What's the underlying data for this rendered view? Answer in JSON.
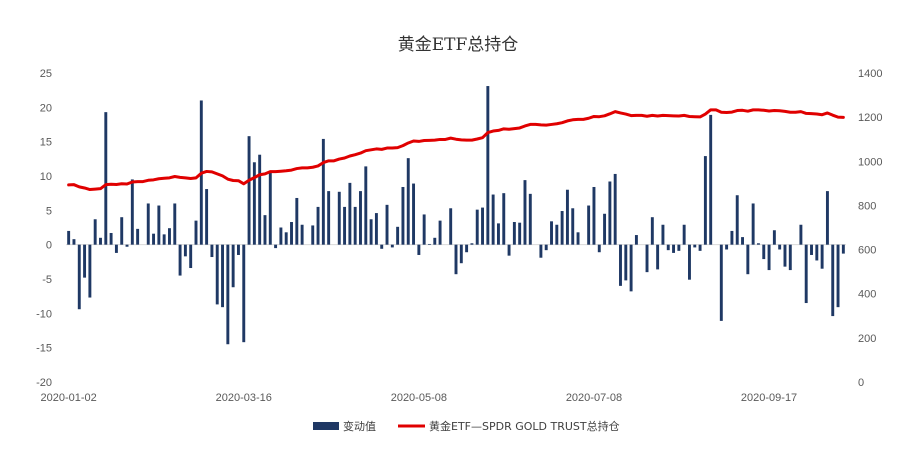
{
  "chart_data": {
    "type": "bar",
    "title": "黄金ETF总持仓",
    "legend_position": "bottom",
    "grid": false,
    "x_tick_labels": [
      "2020-01-02",
      "2020-03-16",
      "2020-05-08",
      "2020-07-08",
      "2020-09-17"
    ],
    "x_tick_indices": [
      0,
      33,
      66,
      99,
      132
    ],
    "y_left": {
      "min": -20,
      "max": 25,
      "step": 5
    },
    "y_right": {
      "min": 0,
      "max": 1400,
      "step": 200
    },
    "series": [
      {
        "name": "变动值",
        "type": "bar",
        "axis": "left",
        "color": "#1f3864",
        "values": [
          2.0,
          0.8,
          -9.4,
          -4.8,
          -7.7,
          3.7,
          1.0,
          19.3,
          1.7,
          -1.2,
          4.0,
          -0.3,
          9.5,
          2.3,
          0,
          6.0,
          1.6,
          5.7,
          1.5,
          2.4,
          6.0,
          -4.5,
          -1.7,
          -3.4,
          3.5,
          21.0,
          8.1,
          -1.8,
          -8.7,
          -9.1,
          -14.5,
          -6.2,
          -1.5,
          -14.2,
          15.8,
          12.0,
          13.1,
          4.3,
          10.5,
          -0.5,
          2.5,
          1.8,
          3.3,
          6.8,
          2.9,
          0,
          2.8,
          5.5,
          15.4,
          7.8,
          0,
          7.7,
          5.5,
          9.0,
          5.5,
          7.8,
          11.4,
          3.7,
          4.6,
          -0.6,
          5.8,
          -0.4,
          2.6,
          8.4,
          12.6,
          8.9,
          -1.5,
          4.4,
          0.1,
          1.0,
          3.5,
          0,
          5.3,
          -4.3,
          -2.7,
          -1.1,
          0.2,
          5.1,
          5.4,
          23.1,
          7.3,
          3.1,
          7.5,
          -1.6,
          3.3,
          3.2,
          9.4,
          7.4,
          0,
          -1.9,
          -0.8,
          3.4,
          2.9,
          4.9,
          8.0,
          5.3,
          1.8,
          0,
          5.7,
          8.4,
          -1.1,
          4.5,
          9.2,
          10.3,
          -6.0,
          -5.2,
          -6.8,
          1.4,
          0,
          -4.0,
          4.0,
          -3.6,
          2.9,
          -0.8,
          -1.2,
          -0.9,
          2.9,
          -5.1,
          -0.4,
          -0.9,
          12.9,
          18.9,
          0,
          -11.1,
          -0.7,
          2.0,
          7.2,
          1.1,
          -4.3,
          6.0,
          0.2,
          -2.1,
          -3.7,
          2.1,
          -0.7,
          -3.2,
          -3.7,
          0,
          2.9,
          -8.5,
          -1.5,
          -2.3,
          -3.5,
          7.8,
          -10.4,
          -9.1,
          -1.3
        ]
      },
      {
        "name": "黄金ETF—SPDR GOLD TRUST总持仓",
        "type": "line",
        "axis": "right",
        "color": "#e00000",
        "values": [
          893,
          894,
          884,
          879,
          872,
          874,
          876,
          894,
          896,
          895,
          898,
          897,
          906,
          908,
          908,
          914,
          916,
          921,
          923,
          925,
          931,
          927,
          925,
          922,
          925,
          946,
          954,
          952,
          943,
          934,
          919,
          913,
          912,
          898,
          914,
          926,
          939,
          943,
          953,
          953,
          955,
          957,
          960,
          967,
          970,
          970,
          973,
          979,
          994,
          1002,
          1002,
          1010,
          1015,
          1024,
          1030,
          1037,
          1048,
          1052,
          1056,
          1054,
          1060,
          1060,
          1062,
          1071,
          1083,
          1092,
          1090,
          1094,
          1095,
          1096,
          1099,
          1099,
          1105,
          1100,
          1097,
          1096,
          1096,
          1101,
          1107,
          1130,
          1137,
          1140,
          1147,
          1145,
          1148,
          1151,
          1160,
          1167,
          1167,
          1165,
          1164,
          1167,
          1170,
          1175,
          1183,
          1188,
          1190,
          1190,
          1195,
          1203,
          1202,
          1206,
          1215,
          1225,
          1219,
          1214,
          1207,
          1208,
          1208,
          1204,
          1208,
          1205,
          1208,
          1207,
          1206,
          1205,
          1208,
          1203,
          1202,
          1201,
          1214,
          1233,
          1233,
          1222,
          1221,
          1223,
          1230,
          1231,
          1227,
          1233,
          1233,
          1231,
          1228,
          1230,
          1229,
          1226,
          1222,
          1222,
          1225,
          1217,
          1216,
          1214,
          1211,
          1219,
          1209,
          1200,
          1199
        ]
      }
    ]
  }
}
